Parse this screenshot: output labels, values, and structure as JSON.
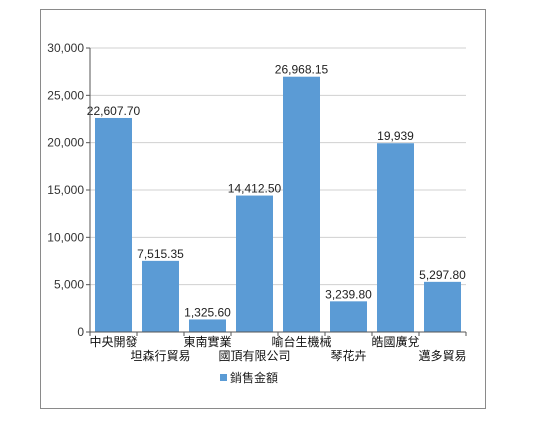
{
  "chart_data": {
    "type": "bar",
    "categories": [
      "中央開發",
      "坦森行貿易",
      "東南實業",
      "國頂有限公司",
      "喻台生機械",
      "琴花卉",
      "皓國廣兌",
      "邁多貿易"
    ],
    "values": [
      22607.7,
      7515.35,
      1325.6,
      14412.5,
      26968.15,
      3239.8,
      19939,
      5297.8
    ],
    "data_labels": [
      "22,607.70",
      "7,515.35",
      "1,325.60",
      "14,412.50",
      "26,968.15",
      "3,239.80",
      "19,939",
      "5,297.80"
    ],
    "series": [
      {
        "name": "銷售金額",
        "values": [
          22607.7,
          7515.35,
          1325.6,
          14412.5,
          26968.15,
          3239.8,
          19939,
          5297.8
        ]
      }
    ],
    "yticks": [
      "0",
      "5,000",
      "10,000",
      "15,000",
      "20,000",
      "25,000",
      "30,000"
    ],
    "ylim": [
      0,
      30000
    ],
    "grid": true,
    "legend_position": "bottom",
    "bar_color": "#5b9bd5"
  }
}
